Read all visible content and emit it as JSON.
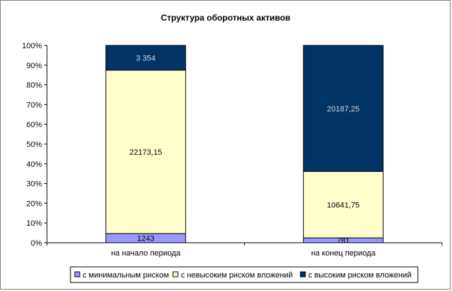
{
  "chart_data": {
    "type": "bar",
    "stacked": "percent",
    "title": "Структура оборотных активов",
    "categories": [
      "на начало периода",
      "на конец периода"
    ],
    "series": [
      {
        "name": "с минимальным риском",
        "values": [
          1243,
          781
        ],
        "labels": [
          "1243",
          "781"
        ],
        "color": "#9999ff",
        "label_color": "#000000"
      },
      {
        "name": "с невысоким риском вложений",
        "values": [
          22173.15,
          10641.75
        ],
        "labels": [
          "22173,15",
          "10641,75"
        ],
        "color": "#ffffcc",
        "label_color": "#000000"
      },
      {
        "name": "с высоким риском вложений",
        "values": [
          3354,
          20187.25
        ],
        "labels": [
          "3 354",
          "20187,25"
        ],
        "color": "#003366",
        "label_color": "#cfd8e6"
      }
    ],
    "y_ticks": [
      "0%",
      "10%",
      "20%",
      "30%",
      "40%",
      "50%",
      "60%",
      "70%",
      "80%",
      "90%",
      "100%"
    ],
    "ylim": [
      0,
      100
    ],
    "grid": false,
    "legend": "bottom"
  }
}
